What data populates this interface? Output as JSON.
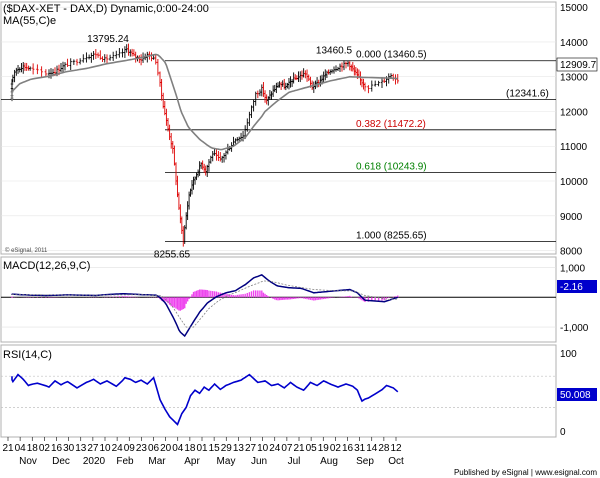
{
  "chart_data": [
    {
      "type": "candlestick",
      "title": "($DAX-XET - DAX,D) Dynamic,0:00-24:00",
      "indicator_label": "MA(55,C)e",
      "watermark": "© eSignal, 2011",
      "y_ticks": [
        8000,
        9000,
        10000,
        11000,
        12000,
        13000,
        14000,
        15000
      ],
      "ylim": [
        7900,
        15150
      ],
      "last_price": "12909.7",
      "price_annotations": [
        {
          "label": "13795.24",
          "value": 13795.24
        },
        {
          "label": "13460.5",
          "value": 13460.5
        },
        {
          "label": "8255.65",
          "value": 8255.65
        }
      ],
      "fib_levels": [
        {
          "label": "0.000 (13460.5)",
          "value": 13460.5,
          "color": "#000000"
        },
        {
          "label": "(12341.6)",
          "value": 12341.6,
          "color": "#000000"
        },
        {
          "label": "0.382 (11472.2)",
          "value": 11472.2,
          "color": "#cc0000"
        },
        {
          "label": "0.618 (10243.9)",
          "value": 10243.9,
          "color": "#008000"
        },
        {
          "label": "1.000 (8255.65)",
          "value": 8255.65,
          "color": "#000000"
        }
      ],
      "price_path": [
        [
          0,
          12350
        ],
        [
          8,
          12800
        ],
        [
          16,
          13200
        ],
        [
          24,
          13300
        ],
        [
          32,
          13230
        ],
        [
          40,
          13100
        ],
        [
          48,
          13150
        ],
        [
          56,
          13300
        ],
        [
          64,
          13420
        ],
        [
          72,
          13580
        ],
        [
          80,
          13650
        ],
        [
          88,
          13500
        ],
        [
          96,
          13600
        ],
        [
          104,
          13795
        ],
        [
          112,
          13600
        ],
        [
          120,
          13500
        ],
        [
          127,
          13650
        ],
        [
          134,
          13450
        ],
        [
          141,
          12300
        ],
        [
          148,
          11500
        ],
        [
          154,
          10900
        ],
        [
          160,
          9600
        ],
        [
          165,
          8700
        ],
        [
          168,
          8300
        ],
        [
          172,
          9000
        ],
        [
          176,
          9600
        ],
        [
          180,
          9900
        ],
        [
          186,
          10200
        ],
        [
          192,
          10500
        ],
        [
          198,
          10300
        ],
        [
          206,
          10800
        ],
        [
          214,
          10600
        ],
        [
          222,
          10900
        ],
        [
          230,
          11200
        ],
        [
          238,
          11300
        ],
        [
          244,
          11900
        ],
        [
          250,
          12500
        ],
        [
          256,
          12650
        ],
        [
          262,
          12300
        ],
        [
          270,
          12600
        ],
        [
          278,
          12800
        ],
        [
          286,
          12700
        ],
        [
          294,
          12900
        ],
        [
          302,
          13000
        ],
        [
          310,
          13100
        ],
        [
          318,
          12700
        ],
        [
          326,
          12850
        ],
        [
          334,
          13050
        ],
        [
          342,
          13200
        ],
        [
          350,
          13300
        ],
        [
          358,
          13400
        ],
        [
          366,
          13150
        ],
        [
          374,
          12900
        ],
        [
          382,
          12700
        ],
        [
          390,
          12850
        ],
        [
          398,
          13050
        ],
        [
          404,
          12909
        ]
      ],
      "ma_path": [
        [
          0,
          12300
        ],
        [
          20,
          12800
        ],
        [
          40,
          13000
        ],
        [
          60,
          13150
        ],
        [
          80,
          13300
        ],
        [
          100,
          13450
        ],
        [
          120,
          13550
        ],
        [
          135,
          13650
        ],
        [
          145,
          13400
        ],
        [
          155,
          12700
        ],
        [
          165,
          12000
        ],
        [
          175,
          11550
        ],
        [
          190,
          11200
        ],
        [
          205,
          10950
        ],
        [
          215,
          10900
        ],
        [
          228,
          11000
        ],
        [
          240,
          11250
        ],
        [
          250,
          11650
        ],
        [
          260,
          12000
        ],
        [
          275,
          12300
        ],
        [
          290,
          12550
        ],
        [
          305,
          12650
        ],
        [
          320,
          12750
        ],
        [
          340,
          12880
        ],
        [
          360,
          13000
        ],
        [
          380,
          12980
        ],
        [
          404,
          12950
        ]
      ],
      "dates_axis": [
        "21",
        "04",
        "18",
        "02",
        "16",
        "30",
        "13",
        "27",
        "10",
        "24",
        "09",
        "23",
        "06",
        "20",
        "04",
        "18",
        "01",
        "15",
        "29",
        "13",
        "27",
        "10",
        "24",
        "07",
        "21",
        "05",
        "19",
        "02",
        "16",
        "31",
        "14",
        "28",
        "12"
      ],
      "months_axis": [
        "Nov",
        "Dec",
        "2020",
        "Feb",
        "Mar",
        "Apr",
        "May",
        "Jun",
        "Jul",
        "Aug",
        "Sep",
        "Oct"
      ]
    },
    {
      "type": "line",
      "title": "MACD(12,26,9,C)",
      "y_ticks": [
        1000,
        -1000
      ],
      "last_value": "-2.16",
      "ylim": [
        -1500,
        1350
      ],
      "macd_path": [
        [
          0,
          120
        ],
        [
          20,
          90
        ],
        [
          40,
          60
        ],
        [
          60,
          80
        ],
        [
          80,
          60
        ],
        [
          100,
          120
        ],
        [
          120,
          90
        ],
        [
          135,
          70
        ],
        [
          145,
          -200
        ],
        [
          155,
          -700
        ],
        [
          163,
          -1150
        ],
        [
          170,
          -1300
        ],
        [
          180,
          -900
        ],
        [
          190,
          -500
        ],
        [
          200,
          -200
        ],
        [
          210,
          20
        ],
        [
          220,
          150
        ],
        [
          230,
          220
        ],
        [
          240,
          420
        ],
        [
          248,
          650
        ],
        [
          256,
          750
        ],
        [
          265,
          550
        ],
        [
          275,
          380
        ],
        [
          290,
          320
        ],
        [
          305,
          300
        ],
        [
          320,
          150
        ],
        [
          340,
          200
        ],
        [
          360,
          260
        ],
        [
          370,
          150
        ],
        [
          380,
          -100
        ],
        [
          392,
          -150
        ],
        [
          404,
          -2
        ]
      ],
      "signal_path": [
        [
          0,
          100
        ],
        [
          40,
          80
        ],
        [
          80,
          70
        ],
        [
          120,
          90
        ],
        [
          140,
          50
        ],
        [
          152,
          -250
        ],
        [
          162,
          -650
        ],
        [
          172,
          -1000
        ],
        [
          182,
          -1000
        ],
        [
          192,
          -700
        ],
        [
          202,
          -380
        ],
        [
          212,
          -120
        ],
        [
          222,
          60
        ],
        [
          232,
          180
        ],
        [
          245,
          380
        ],
        [
          258,
          550
        ],
        [
          270,
          520
        ],
        [
          285,
          420
        ],
        [
          300,
          350
        ],
        [
          320,
          260
        ],
        [
          345,
          220
        ],
        [
          365,
          210
        ],
        [
          380,
          60
        ],
        [
          395,
          -80
        ],
        [
          404,
          -60
        ]
      ]
    },
    {
      "type": "line",
      "title": "RSI(14,C)",
      "y_ticks": [
        100,
        0
      ],
      "last_value": "50.008",
      "ylim": [
        -8,
        110
      ],
      "rsi_path": [
        [
          0,
          65
        ],
        [
          6,
          70
        ],
        [
          12,
          63
        ],
        [
          18,
          72
        ],
        [
          24,
          66
        ],
        [
          30,
          58
        ],
        [
          36,
          61
        ],
        [
          42,
          56
        ],
        [
          48,
          64
        ],
        [
          54,
          59
        ],
        [
          60,
          63
        ],
        [
          66,
          55
        ],
        [
          72,
          62
        ],
        [
          78,
          66
        ],
        [
          84,
          60
        ],
        [
          90,
          64
        ],
        [
          96,
          57
        ],
        [
          102,
          68
        ],
        [
          108,
          66
        ],
        [
          114,
          62
        ],
        [
          120,
          65
        ],
        [
          126,
          60
        ],
        [
          132,
          68
        ],
        [
          138,
          40
        ],
        [
          144,
          28
        ],
        [
          150,
          18
        ],
        [
          156,
          12
        ],
        [
          160,
          8
        ],
        [
          166,
          22
        ],
        [
          172,
          30
        ],
        [
          178,
          45
        ],
        [
          184,
          52
        ],
        [
          190,
          48
        ],
        [
          196,
          56
        ],
        [
          202,
          52
        ],
        [
          208,
          60
        ],
        [
          214,
          53
        ],
        [
          220,
          58
        ],
        [
          228,
          62
        ],
        [
          236,
          65
        ],
        [
          244,
          72
        ],
        [
          252,
          62
        ],
        [
          260,
          64
        ],
        [
          268,
          58
        ],
        [
          276,
          60
        ],
        [
          284,
          55
        ],
        [
          292,
          62
        ],
        [
          300,
          56
        ],
        [
          308,
          52
        ],
        [
          316,
          62
        ],
        [
          324,
          58
        ],
        [
          332,
          64
        ],
        [
          340,
          60
        ],
        [
          348,
          56
        ],
        [
          356,
          60
        ],
        [
          364,
          57
        ],
        [
          370,
          52
        ],
        [
          376,
          38
        ],
        [
          382,
          42
        ],
        [
          388,
          50
        ],
        [
          394,
          58
        ],
        [
          400,
          55
        ],
        [
          404,
          50
        ]
      ]
    }
  ],
  "footer": "Published by eSignal | www.esignal.com"
}
